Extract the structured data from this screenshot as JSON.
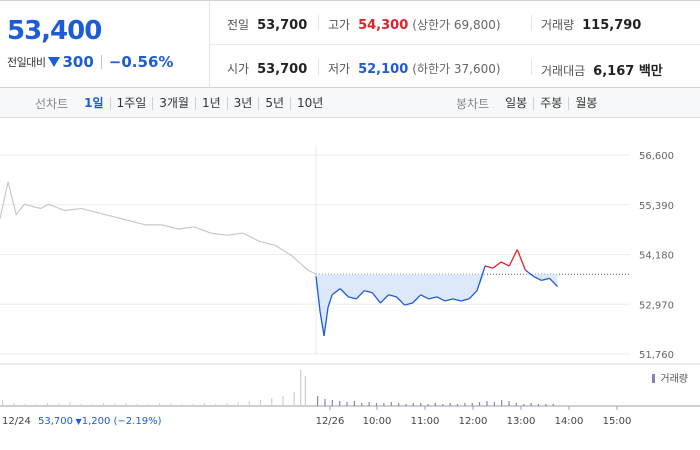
{
  "summary": {
    "current_price": "53,400",
    "change_label": "전일대비",
    "change_value": "300",
    "change_percent": "−0.56%",
    "stats": {
      "prev_close": {
        "label": "전일",
        "value": "53,700"
      },
      "high": {
        "label": "고가",
        "value": "54,300",
        "sub": "(상한가 69,800)"
      },
      "volume": {
        "label": "거래량",
        "value": "115,790"
      },
      "open": {
        "label": "시가",
        "value": "53,700"
      },
      "low": {
        "label": "저가",
        "value": "52,100",
        "sub": "(하한가 37,600)"
      },
      "amount": {
        "label": "거래대금",
        "value": "6,167 백만"
      }
    }
  },
  "period_tabs": {
    "line_label": "선차트",
    "line_items": [
      "1일",
      "1주일",
      "3개월",
      "1년",
      "3년",
      "5년",
      "10년"
    ],
    "active": "1일",
    "candle_label": "봉차트",
    "candle_items": [
      "일봉",
      "주봉",
      "월봉"
    ]
  },
  "colors": {
    "up": "#e0212b",
    "down": "#1e5bd8",
    "prev_day_line": "#c8c8c8",
    "fill": "#dde8fa",
    "volume": "#8f7fb8"
  },
  "chart_data": {
    "type": "line",
    "y_ticks": [
      "56,600",
      "55,390",
      "54,180",
      "52,970",
      "51,760"
    ],
    "ylim": [
      51760,
      56600
    ],
    "x_ticks": [
      "12/26",
      "10:00",
      "11:00",
      "12:00",
      "13:00",
      "14:00",
      "15:00"
    ],
    "base_price": 53700,
    "previous_day": {
      "date": "12/24",
      "x": [
        "09:00",
        "09:10",
        "09:20",
        "09:30",
        "09:40",
        "09:50",
        "10:00",
        "10:20",
        "10:40",
        "11:00",
        "11:20",
        "11:40",
        "12:00",
        "12:20",
        "12:40",
        "13:00",
        "13:20",
        "13:40",
        "14:00",
        "14:20",
        "14:40",
        "15:00",
        "15:20",
        "15:30"
      ],
      "values": [
        55050,
        55950,
        55150,
        55400,
        55350,
        55300,
        55400,
        55250,
        55300,
        55200,
        55100,
        55000,
        54900,
        54900,
        54800,
        54850,
        54700,
        54650,
        54700,
        54500,
        54400,
        54150,
        53800,
        53700
      ]
    },
    "today": {
      "date": "12/26",
      "x": [
        "09:00",
        "09:05",
        "09:10",
        "09:15",
        "09:20",
        "09:30",
        "09:40",
        "09:50",
        "10:00",
        "10:10",
        "10:20",
        "10:30",
        "10:40",
        "10:50",
        "11:00",
        "11:10",
        "11:20",
        "11:30",
        "11:40",
        "11:50",
        "12:00",
        "12:10",
        "12:20",
        "12:30",
        "12:40",
        "12:50",
        "13:00",
        "13:10",
        "13:20",
        "13:30",
        "13:40",
        "13:50",
        "14:00"
      ],
      "values": [
        53650,
        52800,
        52200,
        52900,
        53200,
        53350,
        53150,
        53100,
        53300,
        53250,
        53000,
        53200,
        53150,
        52950,
        53000,
        53200,
        53100,
        53150,
        53050,
        53100,
        53050,
        53100,
        53300,
        53900,
        53850,
        54000,
        53900,
        54300,
        53800,
        53650,
        53550,
        53600,
        53400
      ]
    },
    "volume_label": "거래량",
    "volume_note": {
      "date": "12/24",
      "price": "53,700",
      "change": "1,200",
      "percent": "(−2.19%)"
    }
  }
}
